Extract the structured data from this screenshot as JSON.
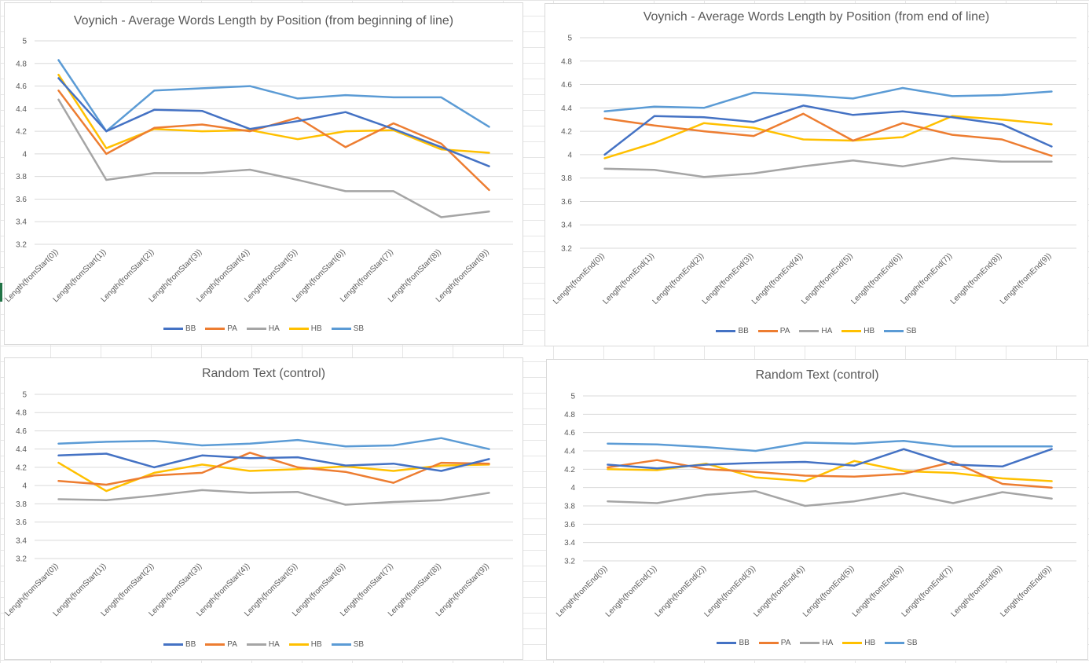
{
  "legend_names": [
    "BB",
    "PA",
    "HA",
    "HB",
    "SB"
  ],
  "colors": {
    "BB": "#4472c4",
    "PA": "#ed7d31",
    "HA": "#a5a5a5",
    "HB": "#ffc000",
    "SB": "#5b9bd5",
    "grid": "#d9d9d9",
    "text": "#595959"
  },
  "chart_data": [
    {
      "type": "line",
      "title": "Voynich - Average Words Length by Position (from beginning of line)",
      "categories": [
        "Length(fromStart(0))",
        "Length(fromStart(1))",
        "Length(fromStart(2))",
        "Length(fromStart(3))",
        "Length(fromStart(4))",
        "Length(fromStart(5))",
        "Length(fromStart(6))",
        "Length(fromStart(7))",
        "Length(fromStart(8))",
        "Length(fromStart(9))"
      ],
      "ylim": [
        3.2,
        5
      ],
      "yticks": [
        "3.2",
        "3.4",
        "3.6",
        "3.8",
        "4",
        "4.2",
        "4.4",
        "4.6",
        "4.8",
        "5"
      ],
      "grid": true,
      "legend_position": "bottom",
      "series": [
        {
          "name": "BB",
          "values": [
            4.67,
            4.2,
            4.39,
            4.38,
            4.22,
            4.29,
            4.37,
            4.22,
            4.06,
            3.89
          ]
        },
        {
          "name": "PA",
          "values": [
            4.56,
            4.0,
            4.23,
            4.26,
            4.2,
            4.32,
            4.06,
            4.27,
            4.09,
            3.68
          ]
        },
        {
          "name": "HA",
          "values": [
            4.48,
            3.77,
            3.83,
            3.83,
            3.86,
            3.77,
            3.67,
            3.67,
            3.44,
            3.49
          ]
        },
        {
          "name": "HB",
          "values": [
            4.7,
            4.05,
            4.22,
            4.2,
            4.21,
            4.13,
            4.2,
            4.21,
            4.04,
            4.01
          ]
        },
        {
          "name": "SB",
          "values": [
            4.83,
            4.2,
            4.56,
            4.58,
            4.6,
            4.49,
            4.52,
            4.5,
            4.5,
            4.24
          ]
        }
      ]
    },
    {
      "type": "line",
      "title": "Voynich - Average Words Length by Position (from end of line)",
      "categories": [
        "Length(fromEnd(0))",
        "Length(fromEnd(1))",
        "Length(fromEnd(2))",
        "Length(fromEnd(3))",
        "Length(fromEnd(4))",
        "Length(fromEnd(5))",
        "Length(fromEnd(6))",
        "Length(fromEnd(7))",
        "Length(fromEnd(8))",
        "Length(fromEnd(9))"
      ],
      "ylim": [
        3.2,
        5
      ],
      "yticks": [
        "3.2",
        "3.4",
        "3.6",
        "3.8",
        "4",
        "4.2",
        "4.4",
        "4.6",
        "4.8",
        "5"
      ],
      "grid": true,
      "legend_position": "bottom",
      "series": [
        {
          "name": "BB",
          "values": [
            4.0,
            4.33,
            4.32,
            4.28,
            4.42,
            4.34,
            4.37,
            4.32,
            4.26,
            4.07
          ]
        },
        {
          "name": "PA",
          "values": [
            4.31,
            4.25,
            4.2,
            4.16,
            4.35,
            4.12,
            4.27,
            4.17,
            4.13,
            3.99
          ]
        },
        {
          "name": "HA",
          "values": [
            3.88,
            3.87,
            3.81,
            3.84,
            3.9,
            3.95,
            3.9,
            3.97,
            3.94,
            3.94
          ]
        },
        {
          "name": "HB",
          "values": [
            3.97,
            4.1,
            4.27,
            4.23,
            4.13,
            4.12,
            4.15,
            4.33,
            4.3,
            4.26
          ]
        },
        {
          "name": "SB",
          "values": [
            4.37,
            4.41,
            4.4,
            4.53,
            4.51,
            4.48,
            4.57,
            4.5,
            4.51,
            4.54
          ]
        }
      ]
    },
    {
      "type": "line",
      "title": "Random Text (control)",
      "categories": [
        "Length(fromStart(0))",
        "Length(fromStart(1))",
        "Length(fromStart(2))",
        "Length(fromStart(3))",
        "Length(fromStart(4))",
        "Length(fromStart(5))",
        "Length(fromStart(6))",
        "Length(fromStart(7))",
        "Length(fromStart(8))",
        "Length(fromStart(9))"
      ],
      "ylim": [
        3.2,
        5
      ],
      "yticks": [
        "3.2",
        "3.4",
        "3.6",
        "3.8",
        "4",
        "4.2",
        "4.4",
        "4.6",
        "4.8",
        "5"
      ],
      "grid": true,
      "legend_position": "bottom",
      "series": [
        {
          "name": "BB",
          "values": [
            4.33,
            4.35,
            4.2,
            4.33,
            4.3,
            4.31,
            4.22,
            4.24,
            4.16,
            4.29
          ]
        },
        {
          "name": "PA",
          "values": [
            4.05,
            4.01,
            4.11,
            4.14,
            4.36,
            4.2,
            4.15,
            4.03,
            4.25,
            4.24
          ]
        },
        {
          "name": "HA",
          "values": [
            3.85,
            3.84,
            3.89,
            3.95,
            3.92,
            3.93,
            3.79,
            3.82,
            3.84,
            3.92
          ]
        },
        {
          "name": "HB",
          "values": [
            4.25,
            3.94,
            4.14,
            4.23,
            4.16,
            4.18,
            4.21,
            4.16,
            4.22,
            4.23
          ]
        },
        {
          "name": "SB",
          "values": [
            4.46,
            4.48,
            4.49,
            4.44,
            4.46,
            4.5,
            4.43,
            4.44,
            4.52,
            4.4
          ]
        }
      ]
    },
    {
      "type": "line",
      "title": "Random Text (control)",
      "categories": [
        "Length(fromEnd(0))",
        "Length(fromEnd(1))",
        "Length(fromEnd(2))",
        "Length(fromEnd(3))",
        "Length(fromEnd(4))",
        "Length(fromEnd(5))",
        "Length(fromEnd(6))",
        "Length(fromEnd(7))",
        "Length(fromEnd(8))",
        "Length(fromEnd(9))"
      ],
      "ylim": [
        3.2,
        5
      ],
      "yticks": [
        "3.2",
        "3.4",
        "3.6",
        "3.8",
        "4",
        "4.2",
        "4.4",
        "4.6",
        "4.8",
        "5"
      ],
      "grid": true,
      "legend_position": "bottom",
      "series": [
        {
          "name": "BB",
          "values": [
            4.25,
            4.21,
            4.25,
            4.27,
            4.28,
            4.24,
            4.42,
            4.25,
            4.23,
            4.42
          ]
        },
        {
          "name": "PA",
          "values": [
            4.22,
            4.3,
            4.2,
            4.17,
            4.13,
            4.12,
            4.15,
            4.28,
            4.04,
            4.0
          ]
        },
        {
          "name": "HA",
          "values": [
            3.85,
            3.83,
            3.92,
            3.96,
            3.8,
            3.85,
            3.94,
            3.83,
            3.95,
            3.88
          ]
        },
        {
          "name": "HB",
          "values": [
            4.2,
            4.19,
            4.26,
            4.11,
            4.07,
            4.29,
            4.18,
            4.16,
            4.1,
            4.07
          ]
        },
        {
          "name": "SB",
          "values": [
            4.48,
            4.47,
            4.44,
            4.4,
            4.49,
            4.48,
            4.51,
            4.45,
            4.45,
            4.45
          ]
        }
      ]
    }
  ]
}
